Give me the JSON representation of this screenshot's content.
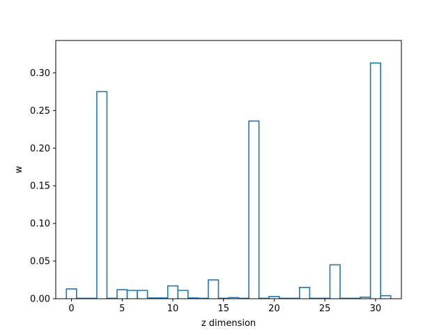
{
  "chart_data": {
    "type": "bar",
    "style": "step-histogram",
    "x": [
      0,
      1,
      2,
      3,
      4,
      5,
      6,
      7,
      8,
      9,
      10,
      11,
      12,
      13,
      14,
      15,
      16,
      17,
      18,
      19,
      20,
      21,
      22,
      23,
      24,
      25,
      26,
      27,
      28,
      29,
      30,
      31
    ],
    "values": [
      0.013,
      0.0005,
      0.0005,
      0.275,
      0.0005,
      0.012,
      0.011,
      0.011,
      0.001,
      0.001,
      0.017,
      0.011,
      0.001,
      0.0005,
      0.025,
      0.0005,
      0.0015,
      0.0005,
      0.236,
      0.0005,
      0.003,
      0.0005,
      0.0005,
      0.015,
      0.0005,
      0.0005,
      0.045,
      0.0005,
      0.0005,
      0.002,
      0.313,
      0.004
    ],
    "color": "#1f77b4",
    "xlabel": "z dimension",
    "ylabel": "w",
    "xlim": [
      -1.55,
      32.55
    ],
    "ylim": [
      0,
      0.343
    ],
    "xticks": [
      0,
      5,
      10,
      15,
      20,
      25,
      30
    ],
    "xtick_labels": [
      "0",
      "5",
      "10",
      "15",
      "20",
      "25",
      "30"
    ],
    "yticks": [
      0.0,
      0.05,
      0.1,
      0.15,
      0.2,
      0.25,
      0.3
    ],
    "ytick_labels": [
      "0.00",
      "0.05",
      "0.10",
      "0.15",
      "0.20",
      "0.25",
      "0.30"
    ],
    "grid": false,
    "legend": "none"
  }
}
